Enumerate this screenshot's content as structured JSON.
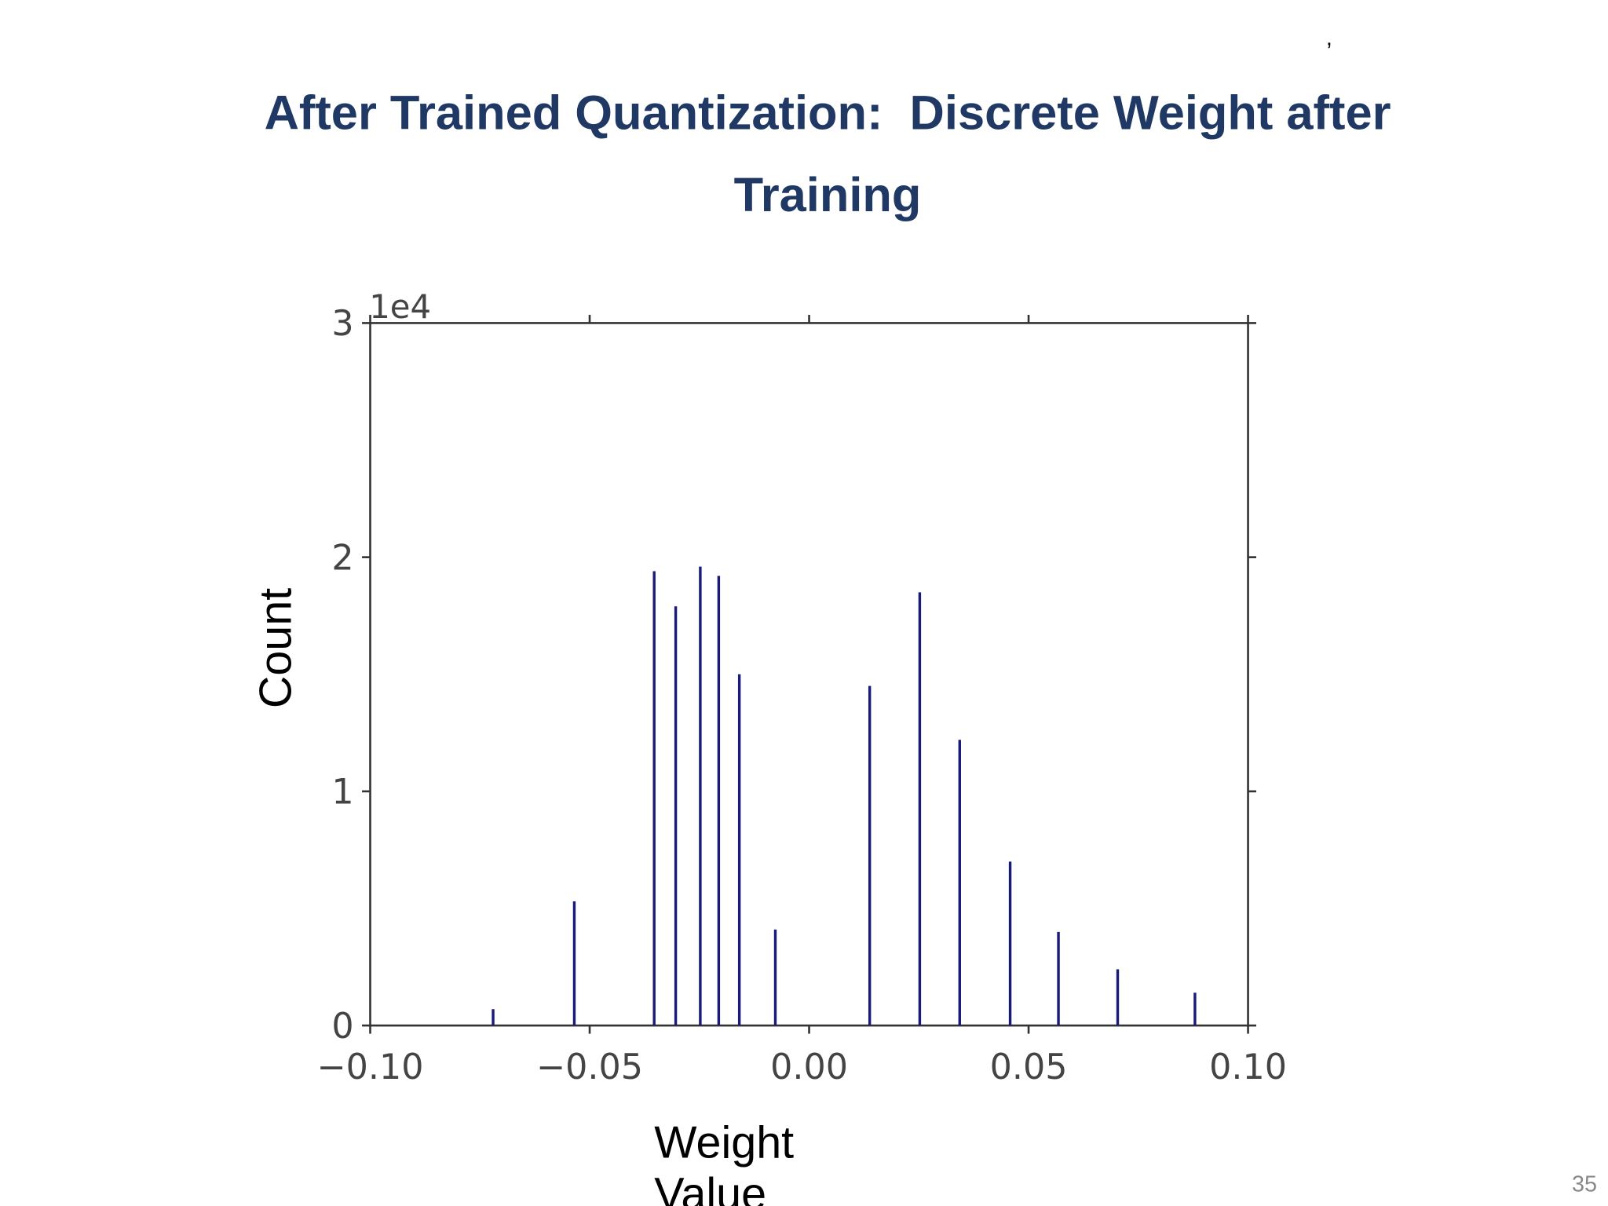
{
  "chart_data": {
    "type": "stem",
    "title": "After Trained Quantization:  Discrete Weight after Training",
    "annotation": ",",
    "page_number": "35",
    "xlabel": "Weight Value",
    "ylabel": "Count",
    "y_offset_label": "1e4",
    "color": "#1a1a78",
    "x": [
      -0.072,
      -0.0535,
      -0.0353,
      -0.0304,
      -0.0248,
      -0.0206,
      -0.0159,
      -0.0077,
      0.0138,
      0.0252,
      0.0343,
      0.0458,
      0.0568,
      0.0703,
      0.0879
    ],
    "values": [
      0.07,
      0.53,
      1.94,
      1.79,
      1.96,
      1.92,
      1.5,
      0.41,
      1.45,
      1.85,
      1.22,
      0.7,
      0.4,
      0.24,
      0.14
    ],
    "xlim": [
      -0.1,
      0.1
    ],
    "ylim": [
      0,
      3
    ],
    "xticks": [
      {
        "value": -0.1,
        "label": "−0.10"
      },
      {
        "value": -0.05,
        "label": "−0.05"
      },
      {
        "value": 0,
        "label": "0.00"
      },
      0.05,
      {
        "value": 0.1,
        "label": "0.10"
      }
    ],
    "yticks": [
      0,
      1,
      2,
      3
    ]
  }
}
